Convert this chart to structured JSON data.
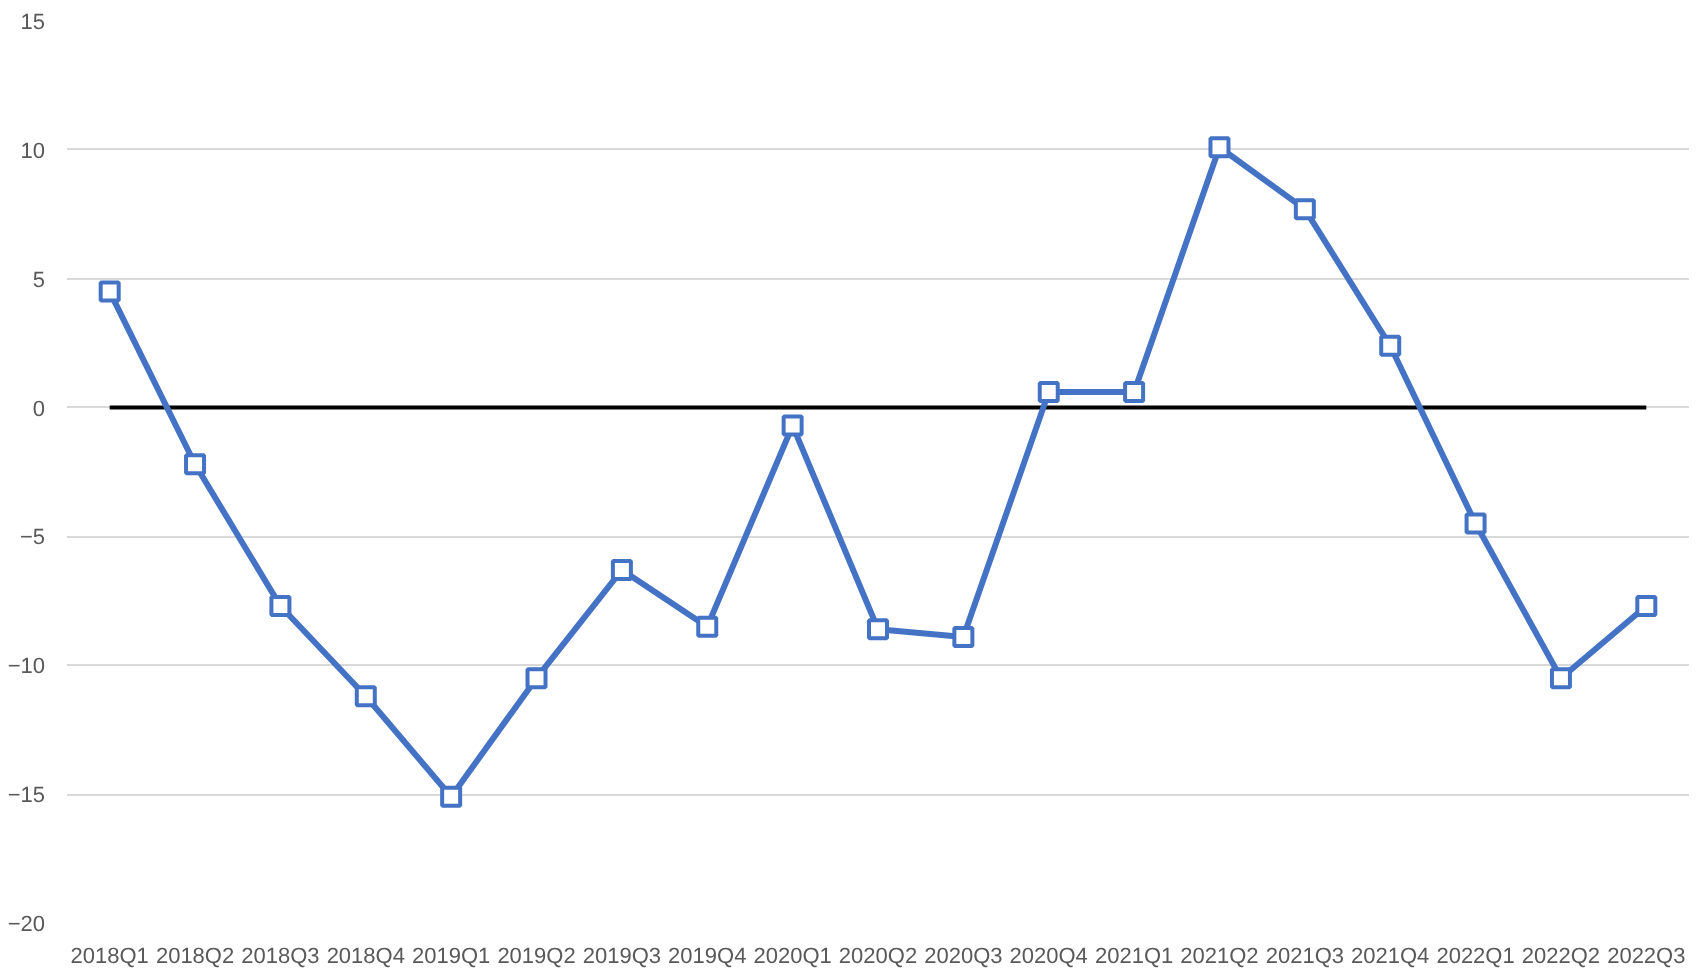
{
  "chart_data": {
    "type": "line",
    "categories": [
      "2018Q1",
      "2018Q2",
      "2018Q3",
      "2018Q4",
      "2019Q1",
      "2019Q2",
      "2019Q3",
      "2019Q4",
      "2020Q1",
      "2020Q2",
      "2020Q3",
      "2020Q4",
      "2021Q1",
      "2021Q2",
      "2021Q3",
      "2021Q4",
      "2022Q1",
      "2022Q2",
      "2022Q3"
    ],
    "series": [
      {
        "color": "#4472c4",
        "values": [
          4.5,
          -2.2,
          -7.7,
          -11.2,
          -15.1,
          -10.5,
          -6.3,
          -8.5,
          -0.7,
          -8.6,
          -8.9,
          0.6,
          0.6,
          10.1,
          7.7,
          2.4,
          -4.5,
          -10.5,
          -7.7
        ]
      }
    ],
    "ylim": [
      -20,
      15
    ],
    "yticks": [
      -20,
      -15,
      -10,
      -5,
      0,
      5,
      10,
      15
    ],
    "ref_lines": [
      {
        "axis": "y",
        "value": 0,
        "color": "#000000"
      }
    ],
    "grid": "y",
    "marker": "square",
    "line_style": "solid"
  }
}
